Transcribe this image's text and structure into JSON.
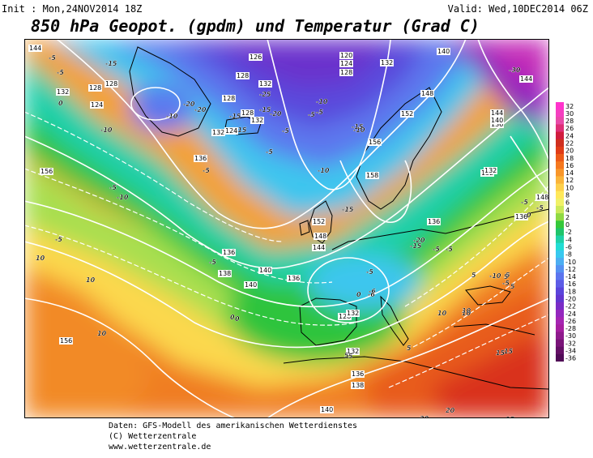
{
  "header": {
    "init": "Init : Mon,24NOV2014 18Z",
    "valid": "Valid: Wed,10DEC2014 06Z",
    "title": "850 hPa Geopot. (gpdm) und Temperatur (Grad C)"
  },
  "credits": {
    "line1": "Daten: GFS-Modell des amerikanischen Wetterdienstes",
    "line2": "(C) Wetterzentrale",
    "line3": "www.wetterzentrale.de"
  },
  "legend": {
    "labels": [
      "32",
      "30",
      "28",
      "26",
      "24",
      "22",
      "20",
      "18",
      "16",
      "14",
      "12",
      "10",
      "8",
      "6",
      "4",
      "2",
      "0",
      "-2",
      "-4",
      "-6",
      "-8",
      "-10",
      "-12",
      "-14",
      "-16",
      "-18",
      "-20",
      "-22",
      "-24",
      "-26",
      "-28",
      "-30",
      "-32",
      "-34",
      "-36"
    ],
    "colors": [
      "#ff33cc",
      "#f53fc0",
      "#e84aa8",
      "#de2f77",
      "#d01c3e",
      "#cf2f1f",
      "#e03c17",
      "#ec5a18",
      "#f5781f",
      "#f8962a",
      "#fab43a",
      "#fdd04c",
      "#ffe85a",
      "#f1f168",
      "#cbe95a",
      "#8fd943",
      "#35c83a",
      "#20c46a",
      "#1fd1a7",
      "#22ddd4",
      "#38c8ef",
      "#4caef2",
      "#5591f2",
      "#5c75ee",
      "#5d5ce6",
      "#5a45db",
      "#6236cf",
      "#7a2cc6",
      "#9427be",
      "#a525b2",
      "#a51fa0",
      "#8e1a8c",
      "#7a1479",
      "#651066",
      "#500b56"
    ]
  },
  "map": {
    "geopotential_labels": [
      {
        "text": "144"
      },
      {
        "text": "132"
      },
      {
        "text": "128"
      },
      {
        "text": "124"
      },
      {
        "text": "128"
      },
      {
        "text": "126"
      },
      {
        "text": "132"
      },
      {
        "text": "128"
      },
      {
        "text": "132"
      },
      {
        "text": "128"
      },
      {
        "text": "124"
      },
      {
        "text": "132"
      },
      {
        "text": "128"
      },
      {
        "text": "120"
      },
      {
        "text": "124"
      },
      {
        "text": "128"
      },
      {
        "text": "132"
      },
      {
        "text": "140"
      },
      {
        "text": "148"
      },
      {
        "text": "152"
      },
      {
        "text": "156"
      },
      {
        "text": "158"
      },
      {
        "text": "136"
      },
      {
        "text": "136"
      },
      {
        "text": "132"
      },
      {
        "text": "140"
      },
      {
        "text": "140"
      },
      {
        "text": "138"
      },
      {
        "text": "136"
      },
      {
        "text": "156"
      },
      {
        "text": "152"
      },
      {
        "text": "148"
      },
      {
        "text": "144"
      },
      {
        "text": "136"
      },
      {
        "text": "128"
      },
      {
        "text": "132"
      },
      {
        "text": "132"
      },
      {
        "text": "136"
      },
      {
        "text": "138"
      },
      {
        "text": "140"
      },
      {
        "text": "156"
      },
      {
        "text": "144"
      },
      {
        "text": "144"
      },
      {
        "text": "136"
      },
      {
        "text": "132"
      },
      {
        "text": "148"
      },
      {
        "text": "140"
      },
      {
        "text": "136"
      }
    ],
    "temperature_labels": [
      {
        "text": "-5"
      },
      {
        "text": "-5"
      },
      {
        "text": "-15"
      },
      {
        "text": "-25"
      },
      {
        "text": "-20"
      },
      {
        "text": "-15"
      },
      {
        "text": "-20"
      },
      {
        "text": "-10"
      },
      {
        "text": "-15"
      },
      {
        "text": "-5"
      },
      {
        "text": "-10"
      },
      {
        "text": "-5"
      },
      {
        "text": "0"
      },
      {
        "text": "-10"
      },
      {
        "text": "-5"
      },
      {
        "text": "-5"
      },
      {
        "text": "-10"
      },
      {
        "text": "-5"
      },
      {
        "text": "-5"
      },
      {
        "text": "-10"
      },
      {
        "text": "-15"
      },
      {
        "text": "-15"
      },
      {
        "text": "-20"
      },
      {
        "text": "-20"
      },
      {
        "text": "-15"
      },
      {
        "text": "-5"
      },
      {
        "text": "-5"
      },
      {
        "text": "0"
      },
      {
        "text": "-6"
      },
      {
        "text": "0"
      },
      {
        "text": "-5"
      },
      {
        "text": "-5"
      },
      {
        "text": "-5"
      },
      {
        "text": "-10"
      },
      {
        "text": "-15"
      },
      {
        "text": "-30"
      },
      {
        "text": "-5"
      },
      {
        "text": "0"
      },
      {
        "text": "-5"
      },
      {
        "text": "-10"
      },
      {
        "text": "-5"
      },
      {
        "text": "10"
      },
      {
        "text": "10"
      },
      {
        "text": "10"
      },
      {
        "text": "0"
      },
      {
        "text": "5"
      },
      {
        "text": "5"
      },
      {
        "text": "5"
      },
      {
        "text": "5"
      },
      {
        "text": "10"
      },
      {
        "text": "10"
      },
      {
        "text": "5"
      },
      {
        "text": "15"
      },
      {
        "text": "20"
      },
      {
        "text": "20"
      },
      {
        "text": "15"
      },
      {
        "text": "15"
      },
      {
        "text": "10"
      },
      {
        "text": "5"
      },
      {
        "text": "5"
      },
      {
        "text": "-6"
      }
    ]
  }
}
